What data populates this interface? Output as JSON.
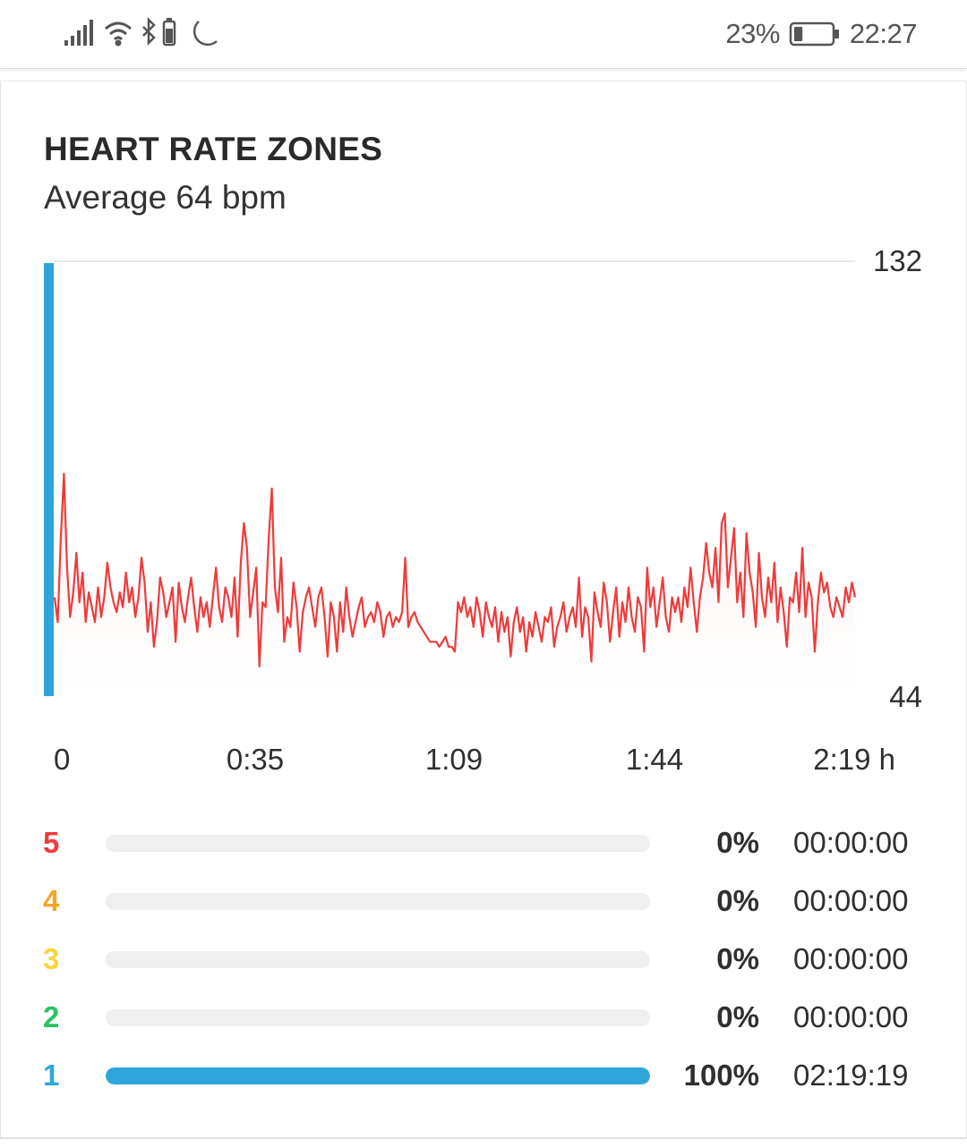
{
  "status_bar": {
    "battery_percent_label": "23%",
    "battery_level": 0.23,
    "time": "22:27",
    "icons": [
      "signal-icon",
      "wifi-icon",
      "bluetooth-icon",
      "phone-battery-icon",
      "moon-icon"
    ]
  },
  "card": {
    "title": "HEART RATE ZONES",
    "subtitle": "Average 64 bpm"
  },
  "chart_data": {
    "type": "area",
    "title": "HEART RATE ZONES",
    "subtitle": "Average 64 bpm",
    "y_unit": "bpm",
    "ylim": [
      44,
      132
    ],
    "y_tick_labels": [
      "132",
      "44"
    ],
    "x_tick_labels": [
      "0",
      "0:35",
      "1:09",
      "1:44",
      "2:19 h"
    ],
    "xlim_minutes": [
      0,
      139.3
    ],
    "grid": "top line only",
    "line_color": "#ef3b3b",
    "fill_color": "#fde7e7",
    "zone_marker_color": "#2ea6da",
    "series": [
      {
        "values": [
          64,
          59,
          76,
          89,
          70,
          60,
          65,
          73,
          63,
          69,
          59,
          65,
          62,
          59,
          66,
          60,
          64,
          71,
          66,
          63,
          61,
          65,
          62,
          69,
          63,
          66,
          60,
          64,
          72,
          67,
          57,
          63,
          54,
          59,
          68,
          65,
          60,
          63,
          66,
          55,
          67,
          62,
          59,
          64,
          68,
          62,
          57,
          64,
          60,
          63,
          58,
          64,
          70,
          62,
          59,
          66,
          64,
          60,
          68,
          56,
          71,
          79,
          74,
          60,
          65,
          70,
          50,
          63,
          62,
          76,
          86,
          66,
          61,
          72,
          55,
          60,
          58,
          67,
          62,
          53,
          61,
          64,
          66,
          62,
          58,
          64,
          66,
          60,
          52,
          63,
          60,
          53,
          63,
          57,
          66,
          60,
          56,
          59,
          62,
          64,
          58,
          60,
          61,
          59,
          63,
          61,
          56,
          60,
          61,
          58,
          60,
          59,
          61,
          72,
          58,
          60,
          61,
          59,
          58,
          57,
          56,
          55,
          55,
          55,
          54,
          55,
          56,
          54,
          54,
          53,
          63,
          61,
          64,
          60,
          62,
          58,
          64,
          61,
          56,
          63,
          60,
          58,
          62,
          55,
          61,
          57,
          60,
          52,
          59,
          62,
          57,
          60,
          53,
          59,
          56,
          61,
          58,
          55,
          60,
          59,
          62,
          54,
          58,
          60,
          63,
          57,
          60,
          62,
          58,
          68,
          56,
          62,
          60,
          51,
          65,
          61,
          58,
          67,
          63,
          55,
          61,
          66,
          56,
          63,
          59,
          66,
          60,
          57,
          64,
          62,
          53,
          70,
          62,
          66,
          58,
          63,
          68,
          60,
          57,
          64,
          61,
          64,
          59,
          66,
          62,
          70,
          63,
          57,
          64,
          68,
          75,
          69,
          66,
          74,
          63,
          79,
          81,
          66,
          72,
          78,
          63,
          69,
          60,
          77,
          69,
          65,
          58,
          73,
          64,
          60,
          68,
          63,
          71,
          59,
          66,
          61,
          54,
          64,
          63,
          69,
          61,
          74,
          60,
          67,
          64,
          53,
          63,
          69,
          65,
          67,
          62,
          60,
          64,
          62,
          60,
          66,
          63,
          67,
          64
        ]
      }
    ]
  },
  "zones": [
    {
      "number": "5",
      "color": "#ef3b3b",
      "fraction": 0.0,
      "percent_label": "0%",
      "time": "00:00:00"
    },
    {
      "number": "4",
      "color": "#f5a623",
      "fraction": 0.0,
      "percent_label": "0%",
      "time": "00:00:00"
    },
    {
      "number": "3",
      "color": "#f8d73e",
      "fraction": 0.0,
      "percent_label": "0%",
      "time": "00:00:00"
    },
    {
      "number": "2",
      "color": "#27c363",
      "fraction": 0.0,
      "percent_label": "0%",
      "time": "00:00:00"
    },
    {
      "number": "1",
      "color": "#2ea6da",
      "fraction": 1.0,
      "percent_label": "100%",
      "time": "02:19:19"
    }
  ]
}
